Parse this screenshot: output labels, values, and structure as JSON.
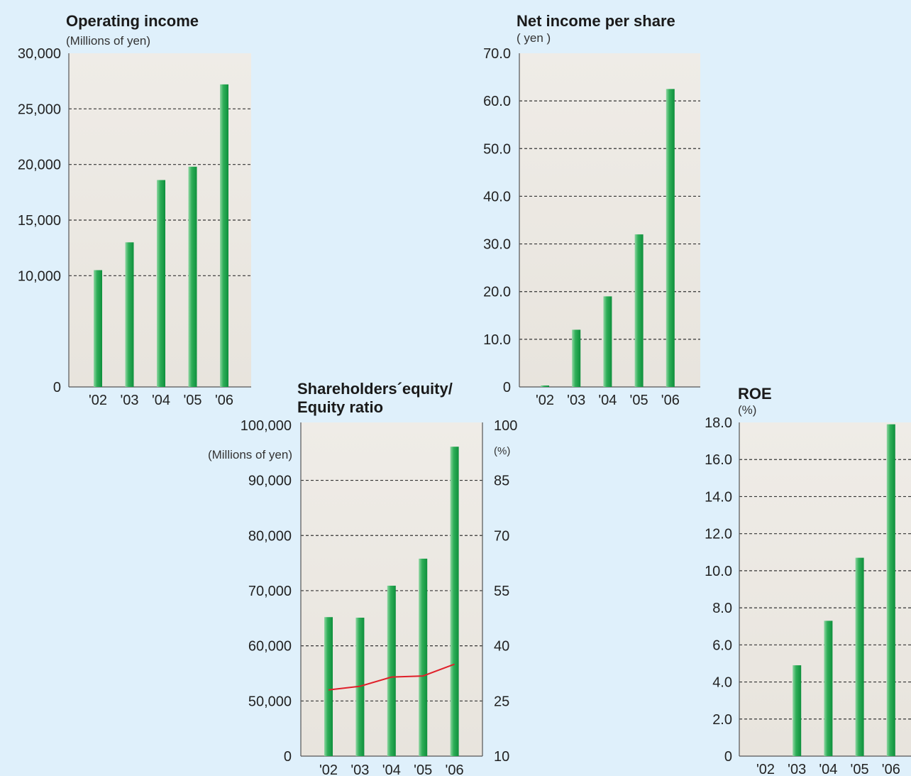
{
  "colors": {
    "background": "#dff0fb",
    "panel": "#ece9e3",
    "bar": "#1aa04a",
    "bar_highlight": "#8fd6a2",
    "line": "#e0202a",
    "grid": "#333333"
  },
  "chart_data": [
    {
      "id": "operating_income",
      "type": "bar",
      "title": "Operating income",
      "unit": "(Millions of yen)",
      "categories": [
        "'02",
        "'03",
        "'04",
        "'05",
        "'06"
      ],
      "values": [
        10500,
        13000,
        18600,
        19800,
        27200
      ],
      "ylim": [
        0,
        30000
      ],
      "yticks": [
        0,
        10000,
        15000,
        20000,
        25000,
        30000
      ],
      "ytick_labels": [
        "0",
        "10,000",
        "15,000",
        "20,000",
        "25,000",
        "30,000"
      ],
      "grid": true
    },
    {
      "id": "net_income_per_share",
      "type": "bar",
      "title": "Net income per share",
      "unit": "( yen )",
      "categories": [
        "'02",
        "'03",
        "'04",
        "'05",
        "'06"
      ],
      "values": [
        0.3,
        12.0,
        19.0,
        32.0,
        62.5
      ],
      "ylim": [
        0,
        70
      ],
      "yticks": [
        0,
        10,
        20,
        30,
        40,
        50,
        60,
        70
      ],
      "ytick_labels": [
        "0",
        "10.0",
        "20.0",
        "30.0",
        "40.0",
        "50.0",
        "60.0",
        "70.0"
      ],
      "grid": true
    },
    {
      "id": "shareholders_equity",
      "type": "bar",
      "title_lines": [
        "Shareholders´equity/",
        "Equity ratio"
      ],
      "unit_left": "(Millions of yen)",
      "unit_right": "(%)",
      "categories": [
        "'02",
        "'03",
        "'04",
        "'05",
        "'06"
      ],
      "series": [
        {
          "name": "Shareholders´equity",
          "type": "bar",
          "axis": "left",
          "values": [
            65200,
            65100,
            70900,
            75800,
            96100
          ]
        },
        {
          "name": "Equity ratio",
          "type": "line",
          "axis": "right",
          "values": [
            28.0,
            29.0,
            31.5,
            31.8,
            35.0
          ]
        }
      ],
      "ylim_left": [
        0,
        100000
      ],
      "yticks_left": [
        0,
        50000,
        60000,
        70000,
        80000,
        90000,
        100000
      ],
      "ytick_labels_left": [
        "0",
        "50,000",
        "60,000",
        "70,000",
        "80,000",
        "90,000",
        "100,000"
      ],
      "ylim_right": [
        10,
        100
      ],
      "yticks_right": [
        10,
        25,
        40,
        55,
        70,
        85,
        100
      ],
      "ytick_labels_right": [
        "10",
        "25",
        "40",
        "55",
        "70",
        "85",
        "100"
      ],
      "grid": true
    },
    {
      "id": "roe",
      "type": "bar",
      "title": "ROE",
      "unit": "(%)",
      "categories": [
        "'02",
        "'03",
        "'04",
        "'05",
        "'06"
      ],
      "values": [
        0,
        4.9,
        7.3,
        10.7,
        17.9
      ],
      "ylim": [
        0,
        18
      ],
      "yticks": [
        0,
        2,
        4,
        6,
        8,
        10,
        12,
        14,
        16,
        18
      ],
      "ytick_labels": [
        "0",
        "2.0",
        "4.0",
        "6.0",
        "8.0",
        "10.0",
        "12.0",
        "14.0",
        "16.0",
        "18.0"
      ],
      "grid": true
    }
  ]
}
